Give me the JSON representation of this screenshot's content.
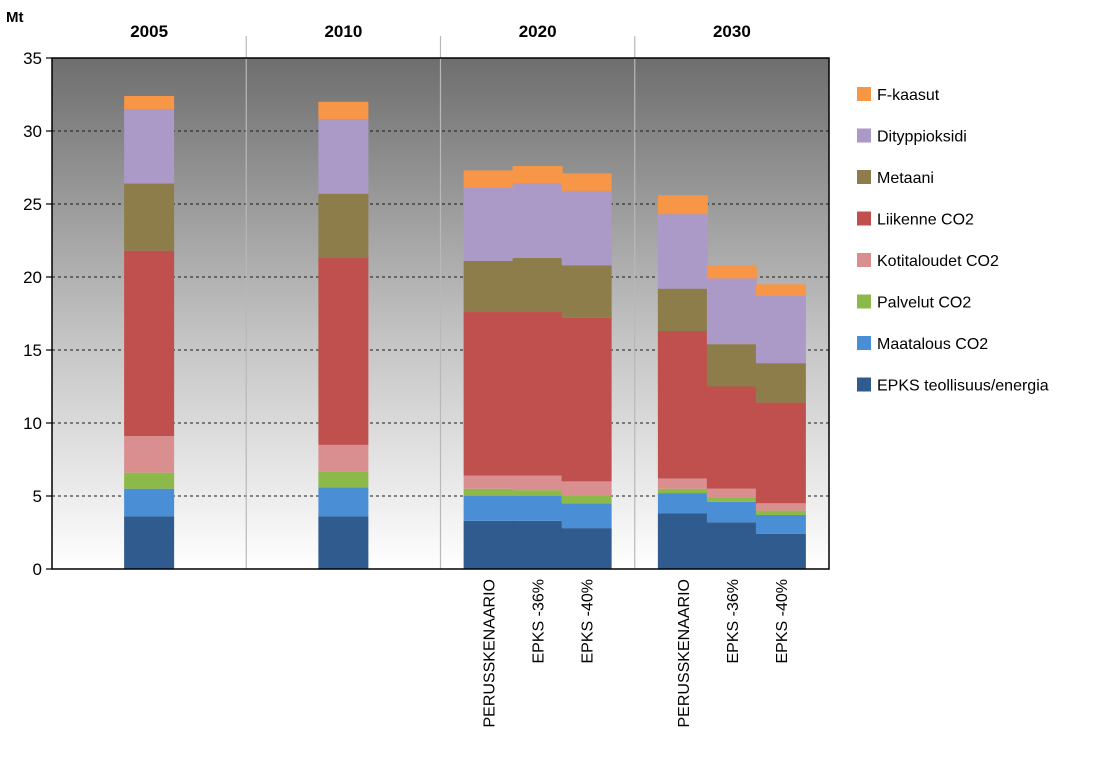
{
  "chart_data": {
    "type": "bar",
    "stacked": true,
    "ylabel": "Mt",
    "ylim": [
      0,
      35
    ],
    "yticks": [
      0,
      5,
      10,
      15,
      20,
      25,
      30,
      35
    ],
    "grid": true,
    "legend_position": "right",
    "groups": [
      {
        "label": "2005",
        "bars": [
          0
        ]
      },
      {
        "label": "2010",
        "bars": [
          1
        ]
      },
      {
        "label": "2020",
        "bars": [
          2,
          3,
          4
        ]
      },
      {
        "label": "2030",
        "bars": [
          5,
          6,
          7
        ]
      }
    ],
    "categories": [
      "",
      "",
      "PERUSSKENAARIO",
      "EPKS -36%",
      "EPKS -40%",
      "PERUSSKENAARIO",
      "EPKS -36%",
      "EPKS -40%"
    ],
    "series": [
      {
        "name": "EPKS teollisuus/energia",
        "color": "#2f5b8f",
        "values": [
          3.6,
          3.6,
          3.3,
          3.3,
          2.8,
          3.8,
          3.2,
          2.4
        ]
      },
      {
        "name": "Maatalous CO2",
        "color": "#4a8fd6",
        "values": [
          1.9,
          2.0,
          1.7,
          1.7,
          1.7,
          1.4,
          1.4,
          1.3
        ]
      },
      {
        "name": "Palvelut CO2",
        "color": "#8db84a",
        "values": [
          1.1,
          1.1,
          0.5,
          0.4,
          0.5,
          0.3,
          0.3,
          0.3
        ]
      },
      {
        "name": "Kotitaloudet CO2",
        "color": "#d98f8f",
        "values": [
          2.5,
          1.8,
          0.9,
          1.0,
          1.0,
          0.7,
          0.6,
          0.5
        ]
      },
      {
        "name": "Liikenne CO2",
        "color": "#c0504d",
        "values": [
          12.7,
          12.8,
          11.2,
          11.2,
          11.2,
          10.1,
          7.0,
          6.9
        ]
      },
      {
        "name": "Metaani",
        "color": "#8c7d4a",
        "values": [
          4.6,
          4.4,
          3.5,
          3.7,
          3.6,
          2.9,
          2.9,
          2.7
        ]
      },
      {
        "name": "Dityppioksidi",
        "color": "#ab9ac7",
        "values": [
          5.1,
          5.1,
          5.0,
          5.1,
          5.1,
          5.1,
          4.5,
          4.6
        ]
      },
      {
        "name": "F-kaasut",
        "color": "#f79646",
        "values": [
          0.9,
          1.2,
          1.2,
          1.2,
          1.2,
          1.3,
          0.9,
          0.8
        ]
      }
    ]
  }
}
